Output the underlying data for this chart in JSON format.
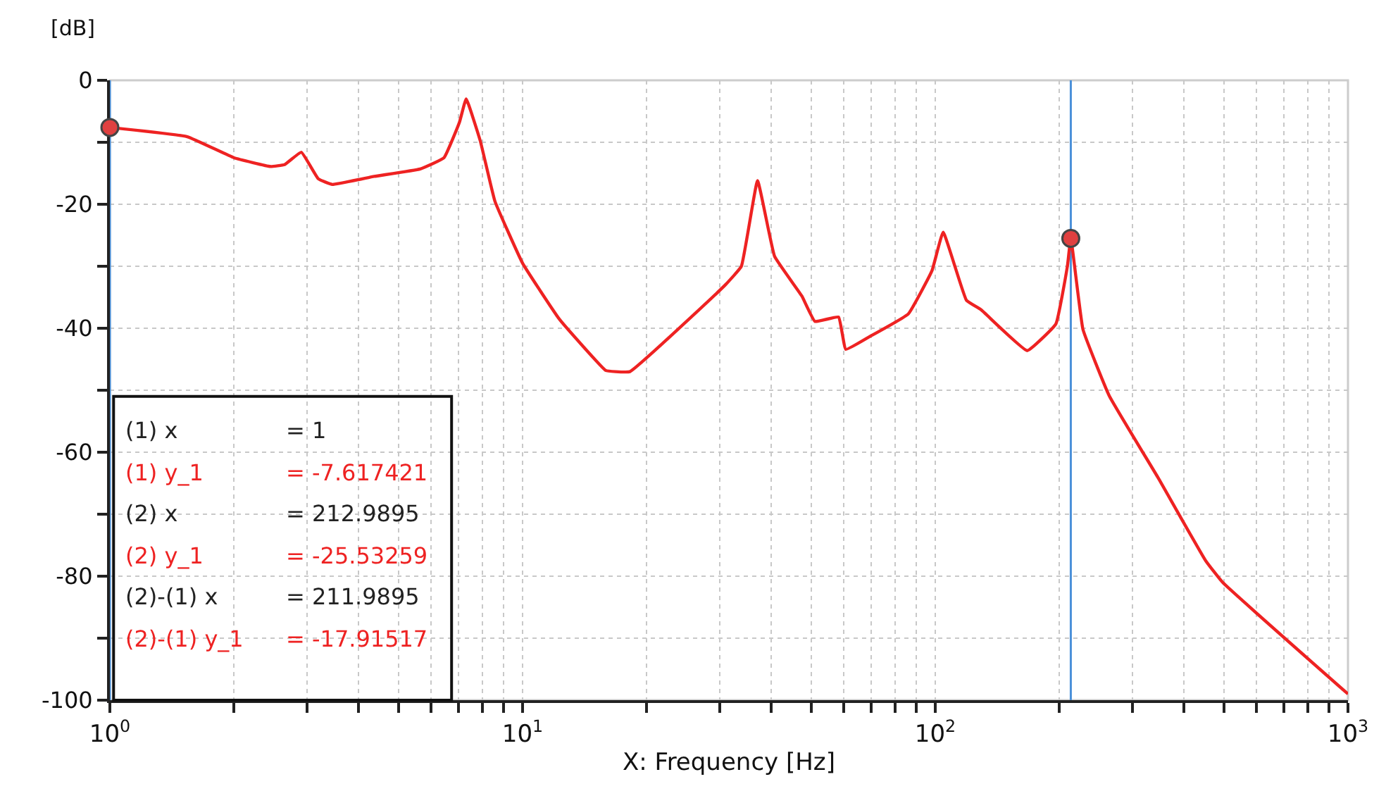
{
  "chart_data": {
    "type": "line",
    "xlabel": "X: Frequency [Hz]",
    "ylabel": "[dB]",
    "log": "x",
    "grid": true,
    "xlim": [
      1,
      1000
    ],
    "ylim": [
      -100,
      0
    ],
    "xticks": [
      {
        "value": 1,
        "label": "10$^{0}$"
      },
      {
        "value": 2,
        "label": null
      },
      {
        "value": 3,
        "label": null
      },
      {
        "value": 4,
        "label": null
      },
      {
        "value": 5,
        "label": null
      },
      {
        "value": 6,
        "label": null
      },
      {
        "value": 7,
        "label": null
      },
      {
        "value": 8,
        "label": null
      },
      {
        "value": 9,
        "label": null
      },
      {
        "value": 10,
        "label": "10$^{1}$"
      },
      {
        "value": 20,
        "label": null
      },
      {
        "value": 30,
        "label": null
      },
      {
        "value": 40,
        "label": null
      },
      {
        "value": 50,
        "label": null
      },
      {
        "value": 60,
        "label": null
      },
      {
        "value": 70,
        "label": null
      },
      {
        "value": 80,
        "label": null
      },
      {
        "value": 90,
        "label": null
      },
      {
        "value": 100,
        "label": "10$^{2}$"
      },
      {
        "value": 200,
        "label": null
      },
      {
        "value": 300,
        "label": null
      },
      {
        "value": 400,
        "label": null
      },
      {
        "value": 500,
        "label": null
      },
      {
        "value": 600,
        "label": null
      },
      {
        "value": 700,
        "label": null
      },
      {
        "value": 800,
        "label": null
      },
      {
        "value": 900,
        "label": null
      },
      {
        "value": 1000,
        "label": "10$^{3}$"
      }
    ],
    "yticks": [
      0,
      {
        "value": -10,
        "label": null
      },
      -20,
      {
        "value": -30,
        "label": null
      },
      -40,
      {
        "value": -50,
        "label": null
      },
      -60,
      {
        "value": -70,
        "label": null
      },
      -80,
      {
        "value": -90,
        "label": null
      },
      -100
    ],
    "series": [
      {
        "marker": "none",
        "line_style": "solid",
        "color": "#ee2222",
        "x": [
          1,
          1.54,
          2.0,
          2.45,
          2.65,
          2.91,
          3.2,
          3.46,
          4.37,
          5.65,
          6.45,
          7.03,
          7.3,
          7.9,
          8.57,
          10,
          12.3,
          15.9,
          16.8,
          18.2,
          31,
          33.9,
          37.1,
          40.8,
          47.5,
          51.1,
          58.3,
          60.7,
          69.1,
          86,
          98.2,
          104.5,
          119,
          129,
          167,
          196,
          209,
          213,
          228,
          264,
          348,
          452,
          497,
          1000
        ],
        "values": [
          -7.6,
          -9.1,
          -12.5,
          -13.9,
          -13.6,
          -11.6,
          -15.9,
          -16.8,
          -15.5,
          -14.3,
          -12.5,
          -6.8,
          -3,
          -9.8,
          -19.5,
          -29.5,
          -38.6,
          -46.8,
          -47,
          -47,
          -33,
          -30,
          -16.2,
          -28.4,
          -34.8,
          -38.9,
          -38.2,
          -43.4,
          -41.4,
          -37.7,
          -30.7,
          -24.5,
          -35.5,
          -37,
          -43.6,
          -39.3,
          -30,
          -25.5,
          -40.2,
          -50.9,
          -64.3,
          -77.5,
          -81,
          -99
        ]
      },
      {
        "type": "scatter",
        "marker": "circle",
        "color": "#e04040",
        "x": [
          1,
          213
        ],
        "values": [
          -7.6,
          -25.5
        ]
      }
    ],
    "ref_lines": [
      {
        "axis": "x",
        "value": 1,
        "color": "#4a90d9"
      },
      {
        "axis": "x",
        "value": 213,
        "color": "#4a90d9"
      }
    ],
    "annotations": [
      "(1) x",
      "= 1",
      "(1) y_1",
      "= -7.617421",
      "(2) x",
      "= 212.9895",
      "(2) y_1",
      "= -25.53259",
      "(2)-(1) x",
      "= 211.9895",
      "(2)-(1) y_1",
      "= -17.91517"
    ]
  }
}
